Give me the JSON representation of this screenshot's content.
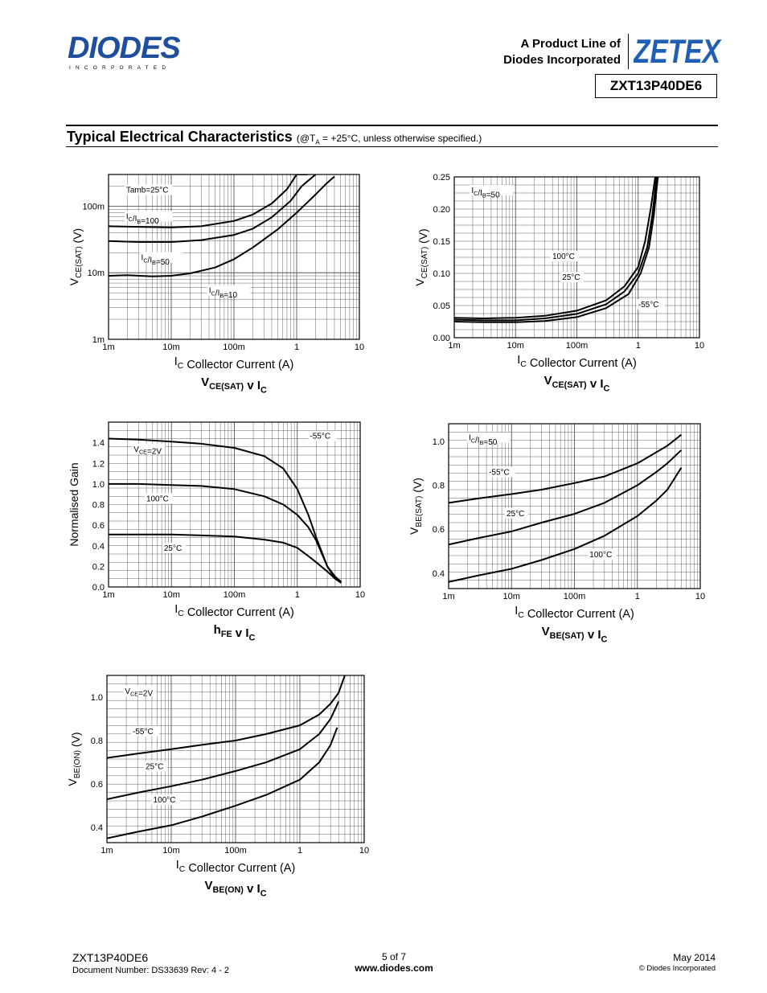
{
  "header": {
    "logo_text": "DIODES",
    "logo_sub": "INCORPORATED",
    "product_line_1": "A Product Line of",
    "product_line_2": "Diodes Incorporated",
    "zetex_text": "ZETEX",
    "part_number": "ZXT13P40DE6"
  },
  "section": {
    "title": "Typical Electrical Characteristics",
    "note_pre": "(@T",
    "note_sub": "A",
    "note_post": " = +25°C, unless otherwise specified.)"
  },
  "chart_data": [
    {
      "type": "line",
      "id": "vcesat-ratio",
      "title": "VCE(SAT) v IC",
      "xlabel": "IC  Collector Current (A)",
      "ylabel": "VCE(SAT)  (V)",
      "x_scale": "log",
      "y_scale": "log",
      "xlim": [
        0.001,
        10
      ],
      "ylim": [
        0.001,
        0.3
      ],
      "x_ticks": [
        "1m",
        "10m",
        "100m",
        "1",
        "10"
      ],
      "y_ticks": [
        "1m",
        "10m",
        "100m"
      ],
      "annotations": [
        "Tamb=25°C",
        "IC/IB=100",
        "IC/IB=50",
        "IC/IB=10"
      ],
      "grid": true,
      "series": [
        {
          "name": "IC/IB=100",
          "x": [
            0.001,
            0.003,
            0.01,
            0.03,
            0.1,
            0.2,
            0.4,
            0.7,
            1.0,
            1.5
          ],
          "y": [
            0.05,
            0.049,
            0.048,
            0.05,
            0.06,
            0.075,
            0.11,
            0.18,
            0.3,
            0.5
          ]
        },
        {
          "name": "IC/IB=50",
          "x": [
            0.001,
            0.003,
            0.01,
            0.03,
            0.1,
            0.2,
            0.4,
            0.8,
            1.2,
            2.0
          ],
          "y": [
            0.03,
            0.029,
            0.029,
            0.031,
            0.037,
            0.046,
            0.068,
            0.12,
            0.2,
            0.4
          ]
        },
        {
          "name": "IC/IB=10",
          "x": [
            0.001,
            0.002,
            0.005,
            0.01,
            0.02,
            0.05,
            0.1,
            0.2,
            0.5,
            1.0,
            2.0,
            3.0,
            4.0
          ],
          "y": [
            0.009,
            0.0092,
            0.0088,
            0.009,
            0.0098,
            0.012,
            0.016,
            0.024,
            0.045,
            0.08,
            0.15,
            0.22,
            0.28
          ]
        }
      ]
    },
    {
      "type": "line",
      "id": "vcesat-temp",
      "title": "VCE(SAT) v IC",
      "xlabel": "IC  Collector Current (A)",
      "ylabel": "VCE(SAT)  (V)",
      "x_scale": "log",
      "y_scale": "linear",
      "xlim": [
        0.001,
        10
      ],
      "ylim": [
        0,
        0.25
      ],
      "x_ticks": [
        "1m",
        "10m",
        "100m",
        "1",
        "10"
      ],
      "y_ticks": [
        "0.00",
        "0.05",
        "0.10",
        "0.15",
        "0.20",
        "0.25"
      ],
      "annotations": [
        "IC/IB=50",
        "100°C",
        "25°C",
        "-55°C"
      ],
      "grid": true,
      "series": [
        {
          "name": "100°C",
          "x": [
            0.001,
            0.003,
            0.01,
            0.03,
            0.1,
            0.3,
            0.6,
            1.0,
            1.3,
            1.6,
            1.9
          ],
          "y": [
            0.031,
            0.03,
            0.031,
            0.034,
            0.042,
            0.058,
            0.08,
            0.11,
            0.15,
            0.2,
            0.25
          ]
        },
        {
          "name": "25°C",
          "x": [
            0.001,
            0.003,
            0.01,
            0.03,
            0.1,
            0.3,
            0.6,
            1.0,
            1.4,
            1.7,
            2.0
          ],
          "y": [
            0.028,
            0.027,
            0.027,
            0.03,
            0.037,
            0.052,
            0.072,
            0.1,
            0.14,
            0.19,
            0.25
          ]
        },
        {
          "name": "-55°C",
          "x": [
            0.001,
            0.003,
            0.01,
            0.03,
            0.1,
            0.3,
            0.7,
            1.1,
            1.5,
            1.8,
            2.1
          ],
          "y": [
            0.025,
            0.024,
            0.024,
            0.026,
            0.032,
            0.046,
            0.068,
            0.1,
            0.14,
            0.19,
            0.25
          ]
        }
      ]
    },
    {
      "type": "line",
      "id": "hfe",
      "title": "hFE v IC",
      "xlabel": "IC  Collector Current (A)",
      "ylabel": "Normalised Gain",
      "x_scale": "log",
      "y_scale": "linear",
      "xlim": [
        0.001,
        10
      ],
      "ylim": [
        0,
        1.6
      ],
      "x_ticks": [
        "1m",
        "10m",
        "100m",
        "1",
        "10"
      ],
      "y_ticks": [
        "0.0",
        "0.2",
        "0.4",
        "0.6",
        "0.8",
        "1.0",
        "1.2",
        "1.4"
      ],
      "annotations": [
        "VCE=2V",
        "100°C",
        "25°C",
        "-55°C"
      ],
      "grid": true,
      "series": [
        {
          "name": "100°C",
          "x": [
            0.001,
            0.003,
            0.01,
            0.03,
            0.1,
            0.3,
            0.6,
            1.0,
            1.5,
            2.0,
            3.0,
            4.0,
            5.0
          ],
          "y": [
            1.44,
            1.43,
            1.41,
            1.39,
            1.35,
            1.27,
            1.15,
            0.95,
            0.7,
            0.48,
            0.2,
            0.1,
            0.05
          ]
        },
        {
          "name": "25°C",
          "x": [
            0.001,
            0.003,
            0.01,
            0.03,
            0.1,
            0.3,
            0.6,
            1.0,
            1.5,
            2.0,
            3.0,
            4.0
          ],
          "y": [
            1.0,
            1.0,
            0.99,
            0.98,
            0.95,
            0.88,
            0.8,
            0.7,
            0.58,
            0.45,
            0.2,
            0.08
          ]
        },
        {
          "name": "-55°C",
          "x": [
            0.001,
            0.003,
            0.01,
            0.03,
            0.1,
            0.3,
            0.6,
            1.0,
            1.5,
            2.0,
            3.0,
            4.0,
            5.0
          ],
          "y": [
            0.51,
            0.51,
            0.51,
            0.5,
            0.49,
            0.46,
            0.43,
            0.38,
            0.3,
            0.24,
            0.15,
            0.08,
            0.04
          ]
        }
      ]
    },
    {
      "type": "line",
      "id": "vbesat",
      "title": "VBE(SAT) v IC",
      "xlabel": "IC  Collector Current (A)",
      "ylabel": "VBE(SAT) (V)",
      "x_scale": "log",
      "y_scale": "linear",
      "xlim": [
        0.001,
        10
      ],
      "ylim": [
        0.33,
        1.08
      ],
      "x_ticks": [
        "1m",
        "10m",
        "100m",
        "1",
        "10"
      ],
      "y_ticks": [
        "0.4",
        "0.6",
        "0.8",
        "1.0"
      ],
      "annotations": [
        "IC/IB=50",
        "-55°C",
        "25°C",
        "100°C"
      ],
      "grid": true,
      "series": [
        {
          "name": "-55°C",
          "x": [
            0.001,
            0.003,
            0.01,
            0.03,
            0.1,
            0.3,
            1.0,
            2.0,
            3.0,
            5.0
          ],
          "y": [
            0.72,
            0.74,
            0.76,
            0.78,
            0.81,
            0.84,
            0.9,
            0.95,
            0.98,
            1.03
          ]
        },
        {
          "name": "25°C",
          "x": [
            0.001,
            0.003,
            0.01,
            0.03,
            0.1,
            0.3,
            1.0,
            2.0,
            3.0,
            5.0
          ],
          "y": [
            0.53,
            0.56,
            0.59,
            0.63,
            0.67,
            0.72,
            0.8,
            0.86,
            0.9,
            0.96
          ]
        },
        {
          "name": "100°C",
          "x": [
            0.001,
            0.003,
            0.01,
            0.03,
            0.1,
            0.3,
            1.0,
            2.0,
            3.0,
            5.0
          ],
          "y": [
            0.36,
            0.39,
            0.42,
            0.46,
            0.51,
            0.57,
            0.66,
            0.73,
            0.78,
            0.88
          ]
        }
      ]
    },
    {
      "type": "line",
      "id": "vbeon",
      "title": "VBE(ON) v IC",
      "xlabel": "IC  Collector Current (A)",
      "ylabel": "VBE(ON) (V)",
      "x_scale": "log",
      "y_scale": "linear",
      "xlim": [
        0.001,
        10
      ],
      "ylim": [
        0.33,
        1.1
      ],
      "x_ticks": [
        "1m",
        "10m",
        "100m",
        "1",
        "10"
      ],
      "y_ticks": [
        "0.4",
        "0.6",
        "0.8",
        "1.0"
      ],
      "annotations": [
        "VCE=2V",
        "-55°C",
        "25°C",
        "100°C"
      ],
      "grid": true,
      "series": [
        {
          "name": "-55°C",
          "x": [
            0.001,
            0.003,
            0.01,
            0.03,
            0.1,
            0.3,
            1.0,
            2.0,
            3.0,
            4.0,
            5.0
          ],
          "y": [
            0.72,
            0.74,
            0.76,
            0.78,
            0.8,
            0.83,
            0.87,
            0.92,
            0.97,
            1.02,
            1.1
          ]
        },
        {
          "name": "25°C",
          "x": [
            0.001,
            0.003,
            0.01,
            0.03,
            0.1,
            0.3,
            1.0,
            2.0,
            3.0,
            4.0
          ],
          "y": [
            0.53,
            0.56,
            0.59,
            0.62,
            0.66,
            0.7,
            0.76,
            0.83,
            0.9,
            0.98
          ]
        },
        {
          "name": "100°C",
          "x": [
            0.001,
            0.003,
            0.01,
            0.03,
            0.1,
            0.3,
            1.0,
            2.0,
            3.0,
            3.8
          ],
          "y": [
            0.35,
            0.38,
            0.41,
            0.45,
            0.5,
            0.55,
            0.62,
            0.7,
            0.78,
            0.86
          ]
        }
      ]
    }
  ],
  "footer": {
    "part": "ZXT13P40DE6",
    "doc": "Document Number: DS33639 Rev: 4 - 2",
    "page": "5 of 7",
    "url": "www.diodes.com",
    "date": "May 2014",
    "copyright": "© Diodes Incorporated"
  }
}
